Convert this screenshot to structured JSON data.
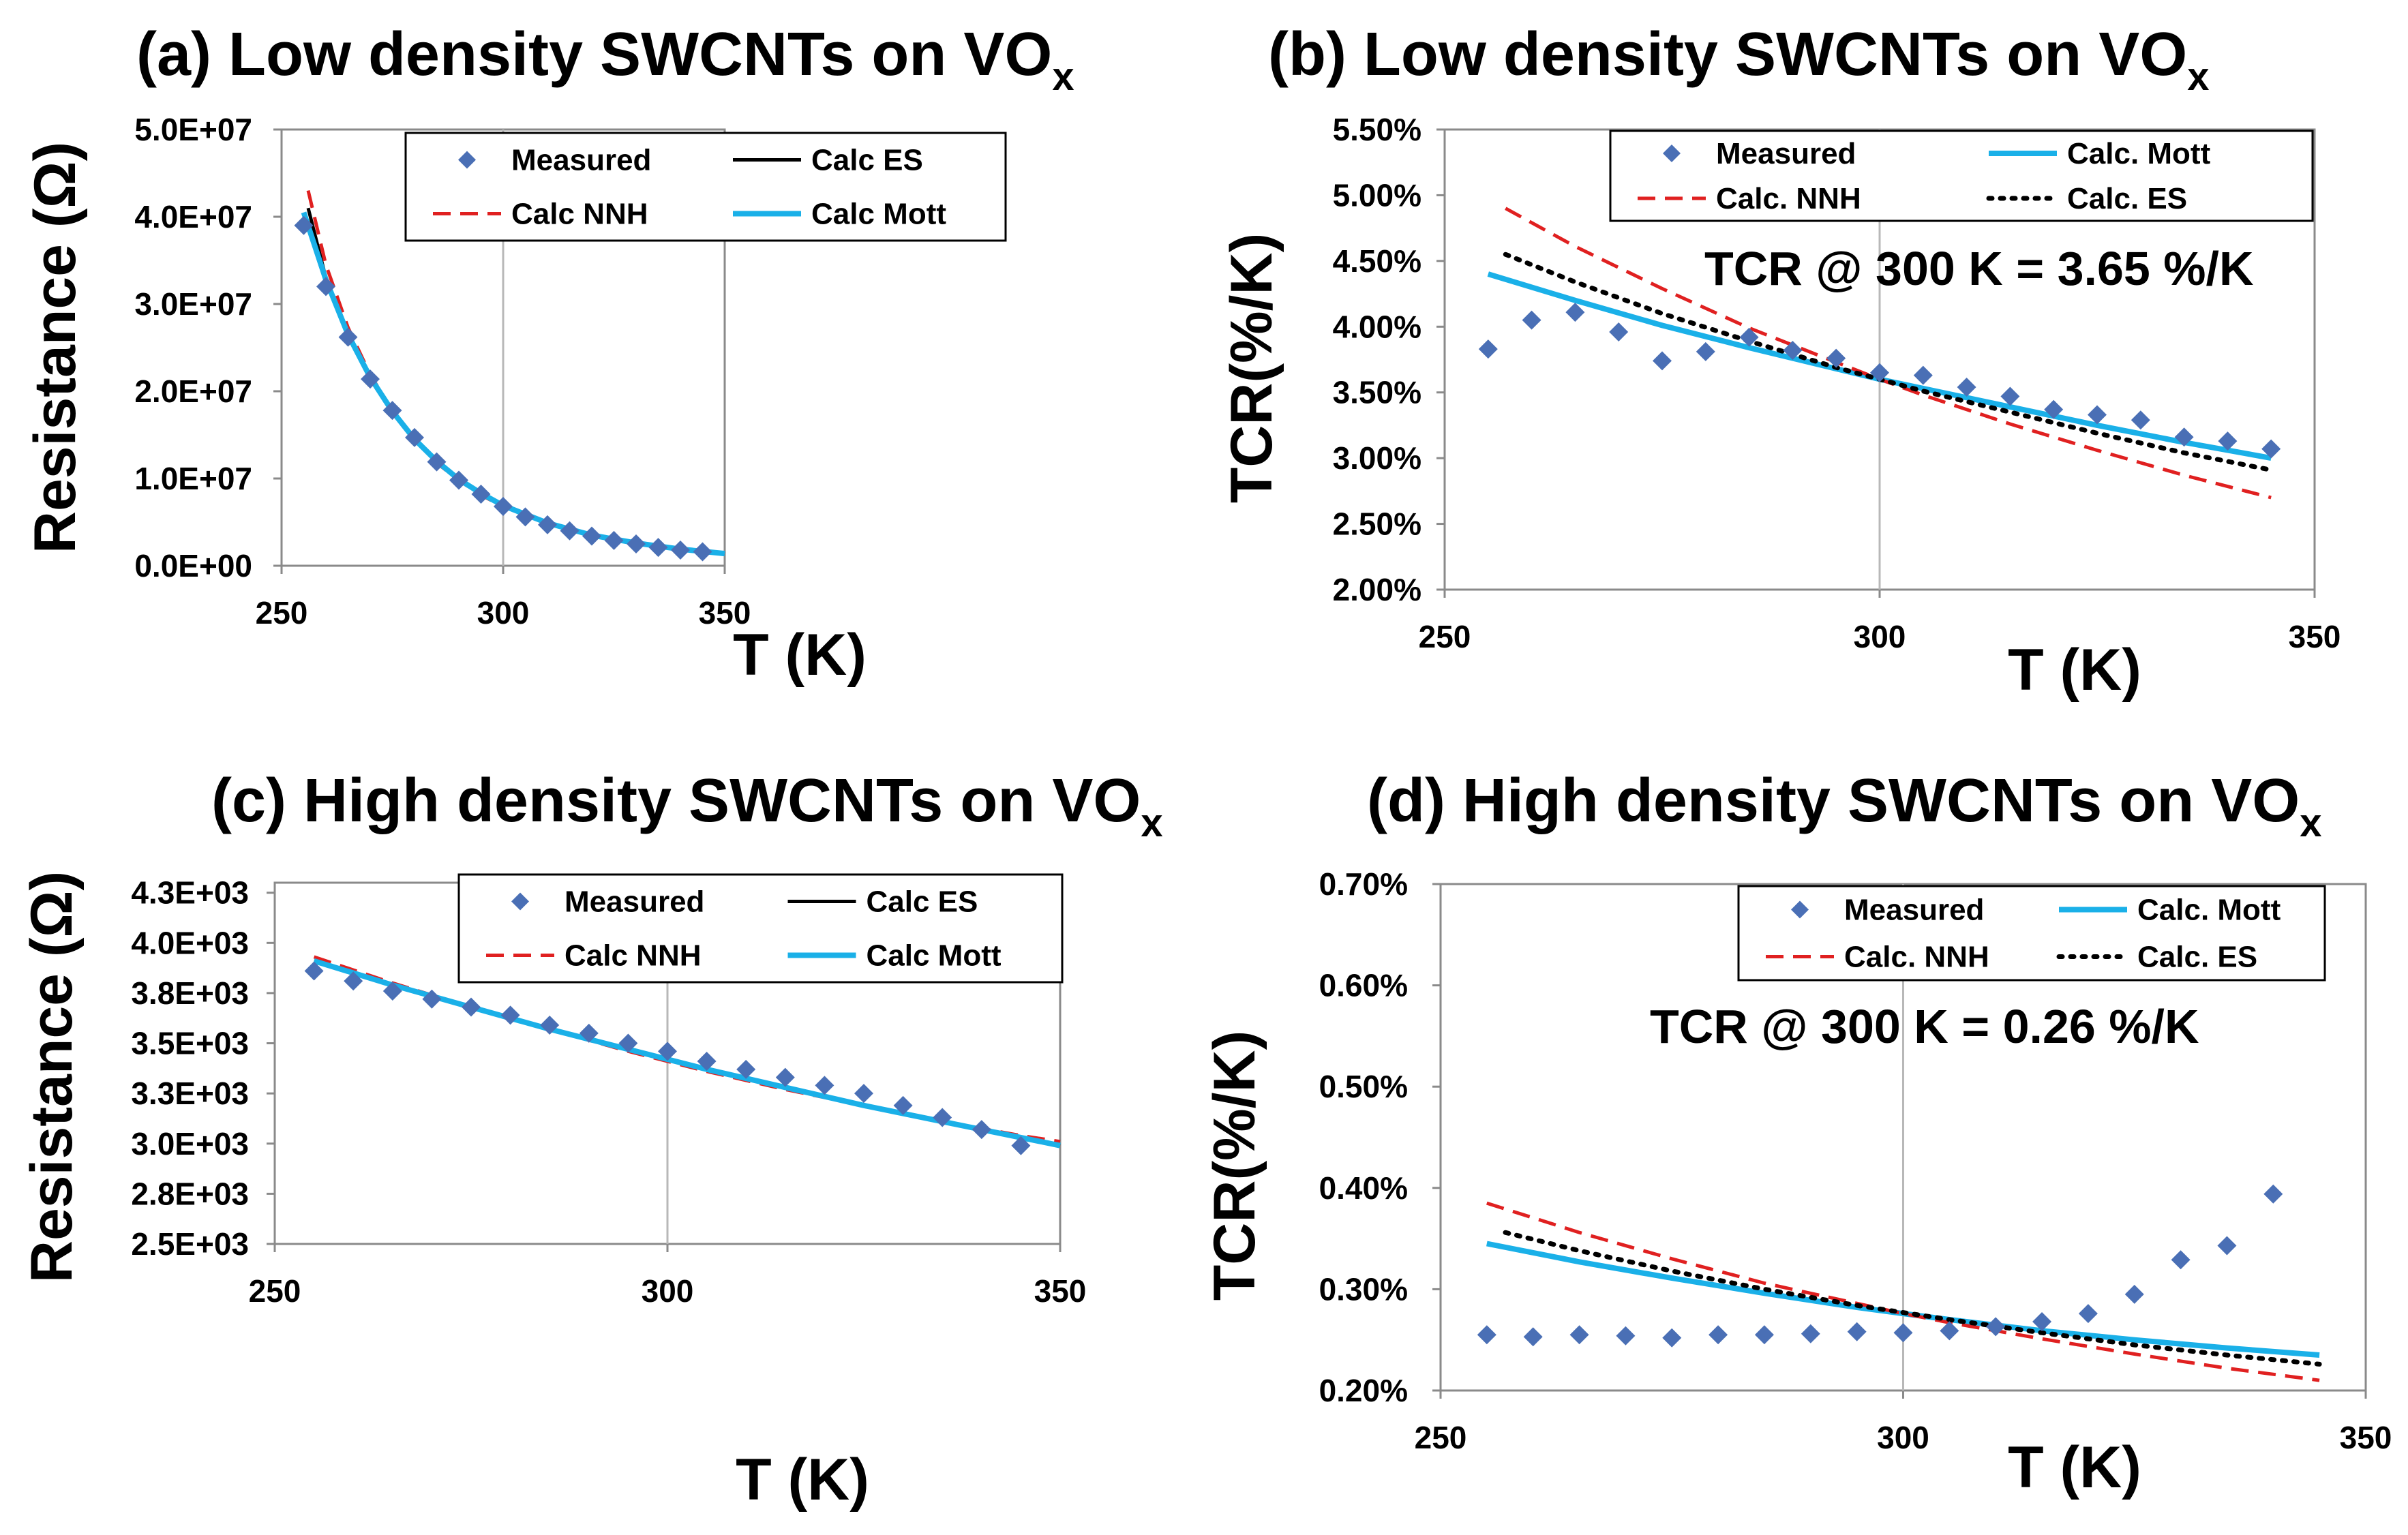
{
  "chart_data": [
    {
      "type": "scatter",
      "panel": "a",
      "title": "(a) Low density SWCNTs on VO",
      "title_subscript": "x",
      "xlabel": "T (K)",
      "ylabel": "Resistance  (Ω)",
      "xlim": [
        250,
        350
      ],
      "ylim": [
        0,
        50000000
      ],
      "x_ticks": [
        250,
        300,
        350
      ],
      "x_tick_labels": [
        "250",
        "300",
        "350"
      ],
      "y_ticks": [
        0,
        10000000,
        20000000,
        30000000,
        40000000,
        50000000
      ],
      "y_tick_labels": [
        "0.0E+00",
        "1.0E+07",
        "2.0E+07",
        "3.0E+07",
        "4.0E+07",
        "5.0E+07"
      ],
      "grid": "major vertical at 300 only (faint)",
      "legend": {
        "position": "top-right",
        "entries": [
          "Measured",
          "Calc ES",
          "Calc NNH",
          "Calc Mott"
        ]
      },
      "annotation": "",
      "series": [
        {
          "name": "Measured",
          "style": "markers",
          "color": "#4a6fb5",
          "x": [
            255,
            260,
            265,
            270,
            275,
            280,
            285,
            290,
            295,
            300,
            305,
            310,
            315,
            320,
            325,
            330,
            335,
            340,
            345
          ],
          "y": [
            39000000,
            32000000,
            26200000,
            21400000,
            17800000,
            14700000,
            11900000,
            9800000,
            8200000,
            6800000,
            5600000,
            4700000,
            4000000,
            3400000,
            2900000,
            2500000,
            2100000,
            1800000,
            1600000
          ]
        },
        {
          "name": "Calc ES",
          "style": "solid",
          "color": "#000000",
          "x": [
            256,
            260,
            265,
            270,
            275,
            280,
            285,
            290,
            295,
            300,
            310,
            320,
            330,
            340,
            350
          ],
          "y": [
            41000000,
            33000000,
            26500000,
            21500000,
            17700000,
            14500000,
            11900000,
            9900000,
            8200000,
            6900000,
            4900000,
            3500000,
            2600000,
            1900000,
            1400000
          ]
        },
        {
          "name": "Calc NNH",
          "style": "dashed",
          "color": "#e02020",
          "x": [
            256,
            260,
            265,
            270,
            275,
            280,
            285,
            290,
            295,
            300,
            310,
            320,
            330,
            340,
            350
          ],
          "y": [
            43000000,
            34500000,
            27300000,
            21900000,
            17800000,
            14500000,
            11800000,
            9800000,
            8100000,
            6800000,
            4800000,
            3500000,
            2500000,
            1900000,
            1400000
          ]
        },
        {
          "name": "Calc Mott",
          "style": "solid",
          "color": "#1ab0e8",
          "x": [
            255,
            260,
            265,
            270,
            275,
            280,
            285,
            290,
            295,
            300,
            310,
            320,
            330,
            340,
            350
          ],
          "y": [
            40500000,
            32800000,
            26500000,
            21600000,
            17700000,
            14500000,
            12000000,
            9900000,
            8300000,
            6900000,
            4900000,
            3500000,
            2600000,
            1900000,
            1400000
          ]
        }
      ]
    },
    {
      "type": "scatter",
      "panel": "b",
      "title": "(b) Low density SWCNTs on VO",
      "title_subscript": "x",
      "xlabel": "T (K)",
      "ylabel": "TCR(%/K)",
      "xlim": [
        250,
        350
      ],
      "ylim": [
        2.0,
        5.5
      ],
      "x_ticks": [
        250,
        300,
        350
      ],
      "x_tick_labels": [
        "250",
        "300",
        "350"
      ],
      "y_ticks": [
        2.0,
        2.5,
        3.0,
        3.5,
        4.0,
        4.5,
        5.0,
        5.5
      ],
      "y_tick_labels": [
        "2.00%",
        "2.50%",
        "3.00%",
        "3.50%",
        "4.00%",
        "4.50%",
        "5.00%",
        "5.50%"
      ],
      "grid": "major vertical at 300 only (faint)",
      "legend": {
        "position": "top-right",
        "entries": [
          "Measured",
          "Calc. Mott",
          "Calc. NNH",
          "Calc. ES"
        ]
      },
      "annotation": "TCR @ 300 K = 3.65 %/K",
      "series": [
        {
          "name": "Measured",
          "style": "markers",
          "color": "#4a6fb5",
          "x": [
            255,
            260,
            265,
            270,
            275,
            280,
            285,
            290,
            295,
            300,
            305,
            310,
            315,
            320,
            325,
            330,
            335,
            340,
            345
          ],
          "y": [
            3.83,
            4.05,
            4.11,
            3.96,
            3.74,
            3.81,
            3.92,
            3.82,
            3.76,
            3.65,
            3.63,
            3.54,
            3.47,
            3.37,
            3.33,
            3.29,
            3.16,
            3.13,
            3.07
          ]
        },
        {
          "name": "Calc. Mott",
          "style": "solid",
          "color": "#1ab0e8",
          "x": [
            255,
            265,
            275,
            285,
            295,
            300,
            305,
            315,
            325,
            335,
            345
          ],
          "y": [
            4.4,
            4.2,
            4.01,
            3.84,
            3.68,
            3.6,
            3.53,
            3.39,
            3.25,
            3.12,
            3.0
          ]
        },
        {
          "name": "Calc. NNH",
          "style": "dashed",
          "color": "#e02020",
          "x": [
            257,
            265,
            275,
            285,
            295,
            300,
            305,
            315,
            325,
            335,
            345
          ],
          "y": [
            4.9,
            4.61,
            4.29,
            3.99,
            3.73,
            3.6,
            3.48,
            3.26,
            3.06,
            2.87,
            2.7
          ]
        },
        {
          "name": "Calc. ES",
          "style": "dotted",
          "color": "#000000",
          "x": [
            257,
            265,
            275,
            285,
            295,
            300,
            305,
            315,
            325,
            335,
            345
          ],
          "y": [
            4.55,
            4.34,
            4.1,
            3.89,
            3.69,
            3.6,
            3.51,
            3.35,
            3.19,
            3.04,
            2.91
          ]
        }
      ]
    },
    {
      "type": "scatter",
      "panel": "c",
      "title": "(c) High density SWCNTs on VO",
      "title_subscript": "x",
      "xlabel": "T (K)",
      "ylabel": "Resistance  (Ω)",
      "xlim": [
        250,
        350
      ],
      "ylim": [
        2500,
        4300
      ],
      "x_ticks": [
        250,
        300,
        350
      ],
      "x_tick_labels": [
        "250",
        "300",
        "350"
      ],
      "y_ticks": [
        2500,
        2750,
        3000,
        3250,
        3500,
        3750,
        4000,
        4250
      ],
      "y_tick_labels": [
        "2.5E+03",
        "2.8E+03",
        "3.0E+03",
        "3.3E+03",
        "3.5E+03",
        "3.8E+03",
        "4.0E+03",
        "4.3E+03"
      ],
      "grid": "major vertical at 300 only (faint)",
      "legend": {
        "position": "top-right",
        "entries": [
          "Measured",
          "Calc ES",
          "Calc NNH",
          "Calc Mott"
        ]
      },
      "annotation": "",
      "series": [
        {
          "name": "Measured",
          "style": "markers",
          "color": "#4a6fb5",
          "x": [
            255,
            260,
            265,
            270,
            275,
            280,
            285,
            290,
            295,
            300,
            305,
            310,
            315,
            320,
            325,
            330,
            335,
            340,
            345
          ],
          "y": [
            3860,
            3810,
            3760,
            3720,
            3680,
            3640,
            3590,
            3550,
            3500,
            3460,
            3410,
            3370,
            3330,
            3290,
            3250,
            3190,
            3130,
            3070,
            2990
          ]
        },
        {
          "name": "Calc ES",
          "style": "solid",
          "color": "#000000",
          "x": [
            255,
            265,
            275,
            285,
            295,
            305,
            315,
            325,
            335,
            345,
            350
          ],
          "y": [
            3910,
            3790,
            3680,
            3570,
            3470,
            3370,
            3280,
            3190,
            3110,
            3030,
            2990
          ]
        },
        {
          "name": "Calc NNH",
          "style": "dashed",
          "color": "#e02020",
          "x": [
            255,
            265,
            275,
            285,
            295,
            305,
            315,
            325,
            335,
            345,
            350
          ],
          "y": [
            3930,
            3800,
            3680,
            3570,
            3460,
            3360,
            3270,
            3190,
            3110,
            3040,
            3010
          ]
        },
        {
          "name": "Calc Mott",
          "style": "solid",
          "color": "#1ab0e8",
          "x": [
            255,
            265,
            275,
            285,
            295,
            305,
            315,
            325,
            335,
            345,
            350
          ],
          "y": [
            3910,
            3790,
            3680,
            3570,
            3470,
            3370,
            3280,
            3190,
            3110,
            3030,
            2990
          ]
        }
      ]
    },
    {
      "type": "scatter",
      "panel": "d",
      "title": "(d) High density SWCNTs on VO",
      "title_subscript": "x",
      "xlabel": "T (K)",
      "ylabel": "TCR(%/K)",
      "xlim": [
        250,
        350
      ],
      "ylim": [
        0.2,
        0.7
      ],
      "x_ticks": [
        250,
        300,
        350
      ],
      "x_tick_labels": [
        "250",
        "300",
        "350"
      ],
      "y_ticks": [
        0.2,
        0.3,
        0.4,
        0.5,
        0.6,
        0.7
      ],
      "y_tick_labels": [
        "0.20%",
        "0.30%",
        "0.40%",
        "0.50%",
        "0.60%",
        "0.70%"
      ],
      "grid": "major vertical at 300 only (faint)",
      "legend": {
        "position": "top-right",
        "entries": [
          "Measured",
          "Calc. Mott",
          "Calc. NNH",
          "Calc. ES"
        ]
      },
      "annotation": "TCR @ 300 K = 0.26 %/K",
      "series": [
        {
          "name": "Measured",
          "style": "markers",
          "color": "#4a6fb5",
          "x": [
            255,
            260,
            265,
            270,
            275,
            280,
            285,
            290,
            295,
            300,
            305,
            310,
            315,
            320,
            325,
            330,
            335,
            340
          ],
          "y": [
            0.255,
            0.253,
            0.255,
            0.254,
            0.252,
            0.255,
            0.255,
            0.256,
            0.258,
            0.257,
            0.259,
            0.263,
            0.268,
            0.276,
            0.295,
            0.329,
            0.343,
            0.394
          ]
        },
        {
          "name": "Calc. Mott",
          "style": "solid",
          "color": "#1ab0e8",
          "x": [
            255,
            265,
            275,
            285,
            295,
            300,
            305,
            315,
            325,
            335,
            345
          ],
          "y": [
            0.345,
            0.327,
            0.311,
            0.296,
            0.282,
            0.276,
            0.27,
            0.259,
            0.25,
            0.242,
            0.235
          ]
        },
        {
          "name": "Calc. NNH",
          "style": "dashed",
          "color": "#e02020",
          "x": [
            255,
            265,
            275,
            285,
            295,
            300,
            305,
            315,
            325,
            335,
            345
          ],
          "y": [
            0.385,
            0.356,
            0.33,
            0.306,
            0.286,
            0.276,
            0.267,
            0.251,
            0.236,
            0.222,
            0.21
          ]
        },
        {
          "name": "Calc. ES",
          "style": "dotted",
          "color": "#000000",
          "x": [
            257,
            265,
            275,
            285,
            295,
            300,
            305,
            315,
            325,
            335,
            345
          ],
          "y": [
            0.356,
            0.338,
            0.318,
            0.3,
            0.284,
            0.277,
            0.27,
            0.257,
            0.245,
            0.235,
            0.226
          ]
        }
      ]
    }
  ]
}
